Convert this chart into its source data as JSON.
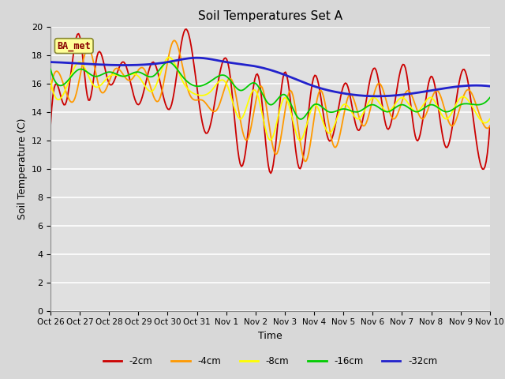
{
  "title": "Soil Temperatures Set A",
  "xlabel": "Time",
  "ylabel": "Soil Temperature (C)",
  "ylim": [
    0,
    20
  ],
  "yticks": [
    0,
    2,
    4,
    6,
    8,
    10,
    12,
    14,
    16,
    18,
    20
  ],
  "xtick_labels": [
    "Oct 26",
    "Oct 27",
    "Oct 28",
    "Oct 29",
    "Oct 30",
    "Oct 31",
    "Nov 1",
    "Nov 2",
    "Nov 3",
    "Nov 4",
    "Nov 5",
    "Nov 6",
    "Nov 7",
    "Nov 8",
    "Nov 9",
    "Nov 10"
  ],
  "legend_label": "BA_met",
  "series_colors": {
    "-2cm": "#cc0000",
    "-4cm": "#ff9900",
    "-8cm": "#ffff00",
    "-16cm": "#00cc00",
    "-32cm": "#2222cc"
  },
  "bg_color": "#e0e0e0",
  "grid_color": "#ffffff",
  "fig_bg": "#d8d8d8",
  "title_fontsize": 11,
  "axis_fontsize": 9
}
